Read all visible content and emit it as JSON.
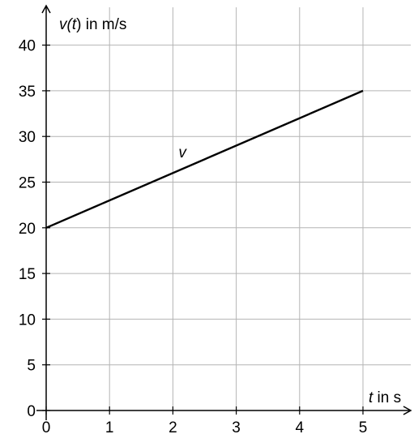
{
  "chart_data": {
    "type": "line",
    "xlabel": {
      "var": "t",
      "rest": " in s"
    },
    "ylabel": {
      "var_prefix": "v(",
      "var": "t",
      "var_suffix": ")",
      "rest": " in m/s"
    },
    "xlim": [
      0,
      5.8
    ],
    "ylim": [
      0,
      42
    ],
    "x_ticks": [
      0,
      1,
      2,
      3,
      4,
      5
    ],
    "y_ticks": [
      0,
      5,
      10,
      15,
      20,
      25,
      30,
      35,
      40
    ],
    "grid": true,
    "series": [
      {
        "name": "v",
        "x": [
          0,
          5
        ],
        "y": [
          20,
          35
        ],
        "color": "#000000"
      }
    ]
  }
}
